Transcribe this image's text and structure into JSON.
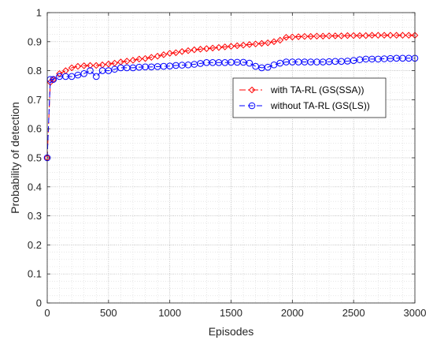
{
  "chart_data": {
    "type": "line",
    "xlabel": "Episodes",
    "ylabel": "Probability of detection",
    "xlim": [
      0,
      3000
    ],
    "ylim": [
      0,
      1
    ],
    "xticks": [
      0,
      500,
      1000,
      1500,
      2000,
      2500,
      3000
    ],
    "yticks": [
      0,
      0.1,
      0.2,
      0.3,
      0.4,
      0.5,
      0.6,
      0.7,
      0.8,
      0.9,
      1
    ],
    "grid": true,
    "legend_position": "right",
    "series": [
      {
        "name": "with TA-RL (GS(SSA))",
        "color": "#ff0000",
        "line_style": "dash-dot",
        "marker": "diamond",
        "x": [
          0,
          25,
          50,
          100,
          150,
          200,
          250,
          300,
          350,
          400,
          450,
          500,
          550,
          600,
          650,
          700,
          750,
          800,
          850,
          900,
          950,
          1000,
          1050,
          1100,
          1150,
          1200,
          1250,
          1300,
          1350,
          1400,
          1450,
          1500,
          1550,
          1600,
          1650,
          1700,
          1750,
          1800,
          1850,
          1900,
          1950,
          2000,
          2050,
          2100,
          2150,
          2200,
          2250,
          2300,
          2350,
          2400,
          2450,
          2500,
          2550,
          2600,
          2650,
          2700,
          2750,
          2800,
          2850,
          2900,
          2950,
          3000
        ],
        "values": [
          0.5,
          0.76,
          0.77,
          0.79,
          0.8,
          0.81,
          0.815,
          0.817,
          0.818,
          0.818,
          0.82,
          0.823,
          0.826,
          0.83,
          0.833,
          0.836,
          0.84,
          0.842,
          0.846,
          0.85,
          0.855,
          0.86,
          0.862,
          0.866,
          0.869,
          0.872,
          0.874,
          0.876,
          0.878,
          0.88,
          0.882,
          0.884,
          0.886,
          0.888,
          0.89,
          0.892,
          0.894,
          0.896,
          0.9,
          0.905,
          0.915,
          0.916,
          0.917,
          0.918,
          0.918,
          0.919,
          0.919,
          0.92,
          0.92,
          0.92,
          0.921,
          0.921,
          0.921,
          0.921,
          0.922,
          0.922,
          0.922,
          0.922,
          0.922,
          0.922,
          0.922,
          0.922
        ]
      },
      {
        "name": "without TA-RL (GS(LS))",
        "color": "#0000ff",
        "line_style": "dashed",
        "marker": "circle",
        "x": [
          0,
          25,
          50,
          100,
          150,
          200,
          250,
          300,
          350,
          400,
          450,
          500,
          550,
          600,
          650,
          700,
          750,
          800,
          850,
          900,
          950,
          1000,
          1050,
          1100,
          1150,
          1200,
          1250,
          1300,
          1350,
          1400,
          1450,
          1500,
          1550,
          1600,
          1650,
          1700,
          1750,
          1800,
          1850,
          1900,
          1950,
          2000,
          2050,
          2100,
          2150,
          2200,
          2250,
          2300,
          2350,
          2400,
          2450,
          2500,
          2550,
          2600,
          2650,
          2700,
          2750,
          2800,
          2850,
          2900,
          2950,
          3000
        ],
        "values": [
          0.5,
          0.77,
          0.77,
          0.78,
          0.78,
          0.78,
          0.785,
          0.79,
          0.8,
          0.78,
          0.8,
          0.8,
          0.805,
          0.81,
          0.81,
          0.81,
          0.812,
          0.813,
          0.813,
          0.814,
          0.815,
          0.816,
          0.818,
          0.819,
          0.82,
          0.822,
          0.825,
          0.828,
          0.828,
          0.828,
          0.828,
          0.829,
          0.829,
          0.829,
          0.826,
          0.815,
          0.81,
          0.812,
          0.82,
          0.826,
          0.83,
          0.83,
          0.83,
          0.83,
          0.83,
          0.83,
          0.83,
          0.831,
          0.832,
          0.832,
          0.833,
          0.835,
          0.838,
          0.84,
          0.84,
          0.84,
          0.841,
          0.842,
          0.843,
          0.843,
          0.843,
          0.843
        ]
      }
    ]
  }
}
